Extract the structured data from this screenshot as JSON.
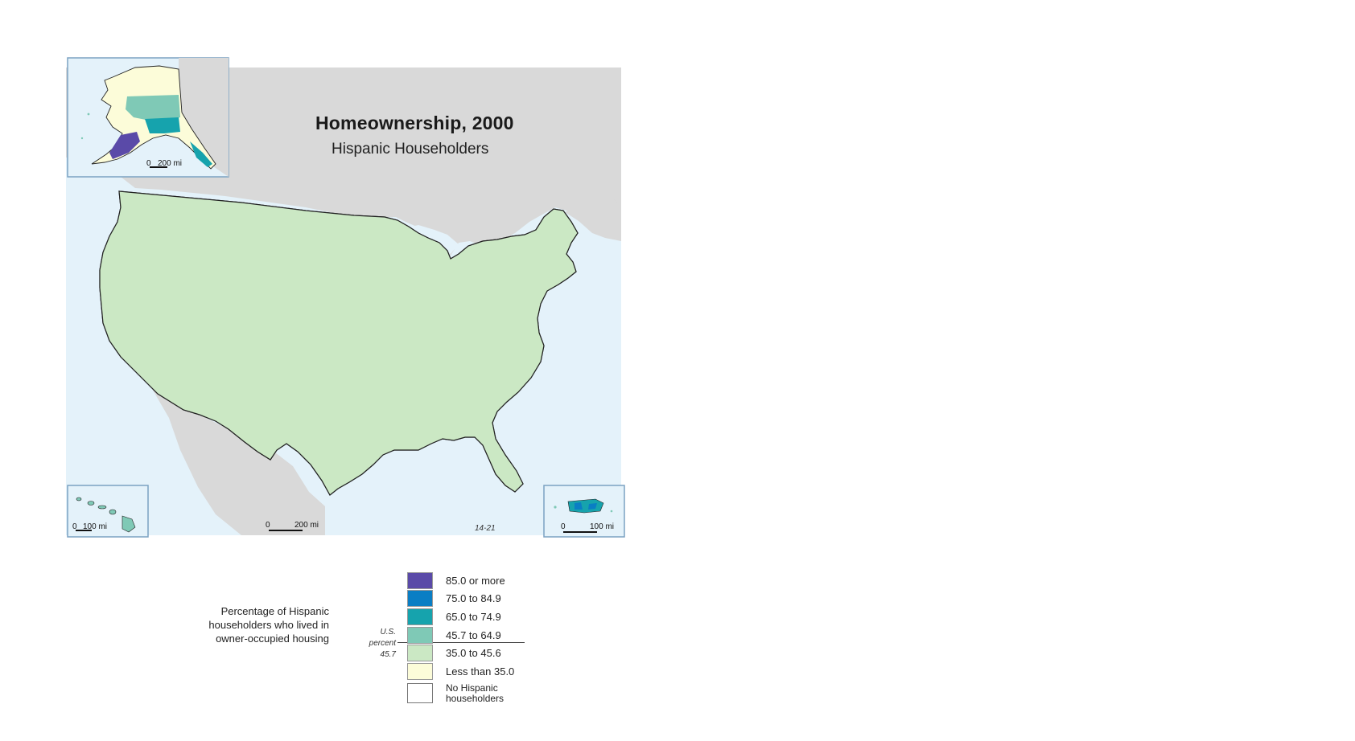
{
  "map": {
    "title": "Homeownership, 2000",
    "subtitle": "Hispanic Householders",
    "map_code": "14-21",
    "insets": {
      "alaska": {
        "scale_zero": "0",
        "scale_value": "200 mi"
      },
      "hawaii": {
        "scale_zero": "0",
        "scale_value": "100 mi"
      },
      "puerto_rico": {
        "scale_zero": "0",
        "scale_value": "100 mi"
      }
    },
    "main_scale": {
      "zero": "0",
      "value": "200 mi"
    }
  },
  "legend": {
    "caption": "Percentage of Hispanic householders who lived in owner-occupied housing",
    "us_percent_label": "U.S. percent",
    "us_percent_value": "45.7",
    "classes": [
      {
        "label": "85.0 or more",
        "color": "#5a4aa8"
      },
      {
        "label": "75.0 to 84.9",
        "color": "#0a7ec4"
      },
      {
        "label": "65.0 to 74.9",
        "color": "#16a3ad"
      },
      {
        "label": "45.7 to 64.9",
        "color": "#7fc9b6"
      },
      {
        "label": "35.0 to 45.6",
        "color": "#cbe8c4"
      },
      {
        "label": "Less than 35.0",
        "color": "#fcfcd9"
      }
    ],
    "no_data": {
      "label": "No Hispanic householders",
      "color": "#ffffff"
    }
  },
  "colors": {
    "water": "#e4f2fa",
    "land_background": "#d9d9d9",
    "inset_border": "#7ba2c2",
    "boundary": "#222222"
  }
}
